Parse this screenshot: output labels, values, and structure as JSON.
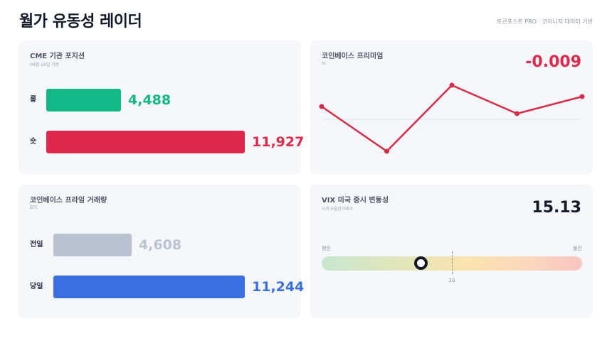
{
  "header": {
    "title": "월가 유동성 레이더",
    "source": "토큰포스트 PRO · 코이니지 데이터 기반"
  },
  "cme": {
    "title": "CME 기관 포지션",
    "subtitle": "08월 18일 기준",
    "rows": [
      {
        "label": "롱",
        "value": 4488,
        "display": "4,488",
        "color": "#12b886"
      },
      {
        "label": "숏",
        "value": 11927,
        "display": "11,927",
        "color": "#e0284c"
      }
    ],
    "max_value": 11927
  },
  "premium": {
    "title": "코인베이스 프리미엄",
    "unit": "%",
    "value": "-0.009",
    "value_color": "#e0284c",
    "line_color": "#d92b45",
    "series": [
      0.018,
      -0.045,
      0.048,
      0.008,
      0.032
    ]
  },
  "volume": {
    "title": "코인베이스 프라임 거래량",
    "subtitle": "BTC",
    "rows": [
      {
        "label": "전일",
        "value": 4608,
        "display": "4,608",
        "color": "#b9c2d0",
        "value_color": "#b9c2d0"
      },
      {
        "label": "당일",
        "value": 11244,
        "display": "11,244",
        "color": "#3a6fe0",
        "value_color": "#3a6fe0"
      }
    ],
    "max_value": 11244
  },
  "vix": {
    "title": "VIX 미국 증시 변동성",
    "subtitle": "시카고옵션거래소",
    "value": "15.13",
    "value_color": "#131b2b",
    "left_label": "평온",
    "right_label": "불안",
    "tick_label": "20",
    "level": 0.38,
    "tick_level": 0.5
  }
}
